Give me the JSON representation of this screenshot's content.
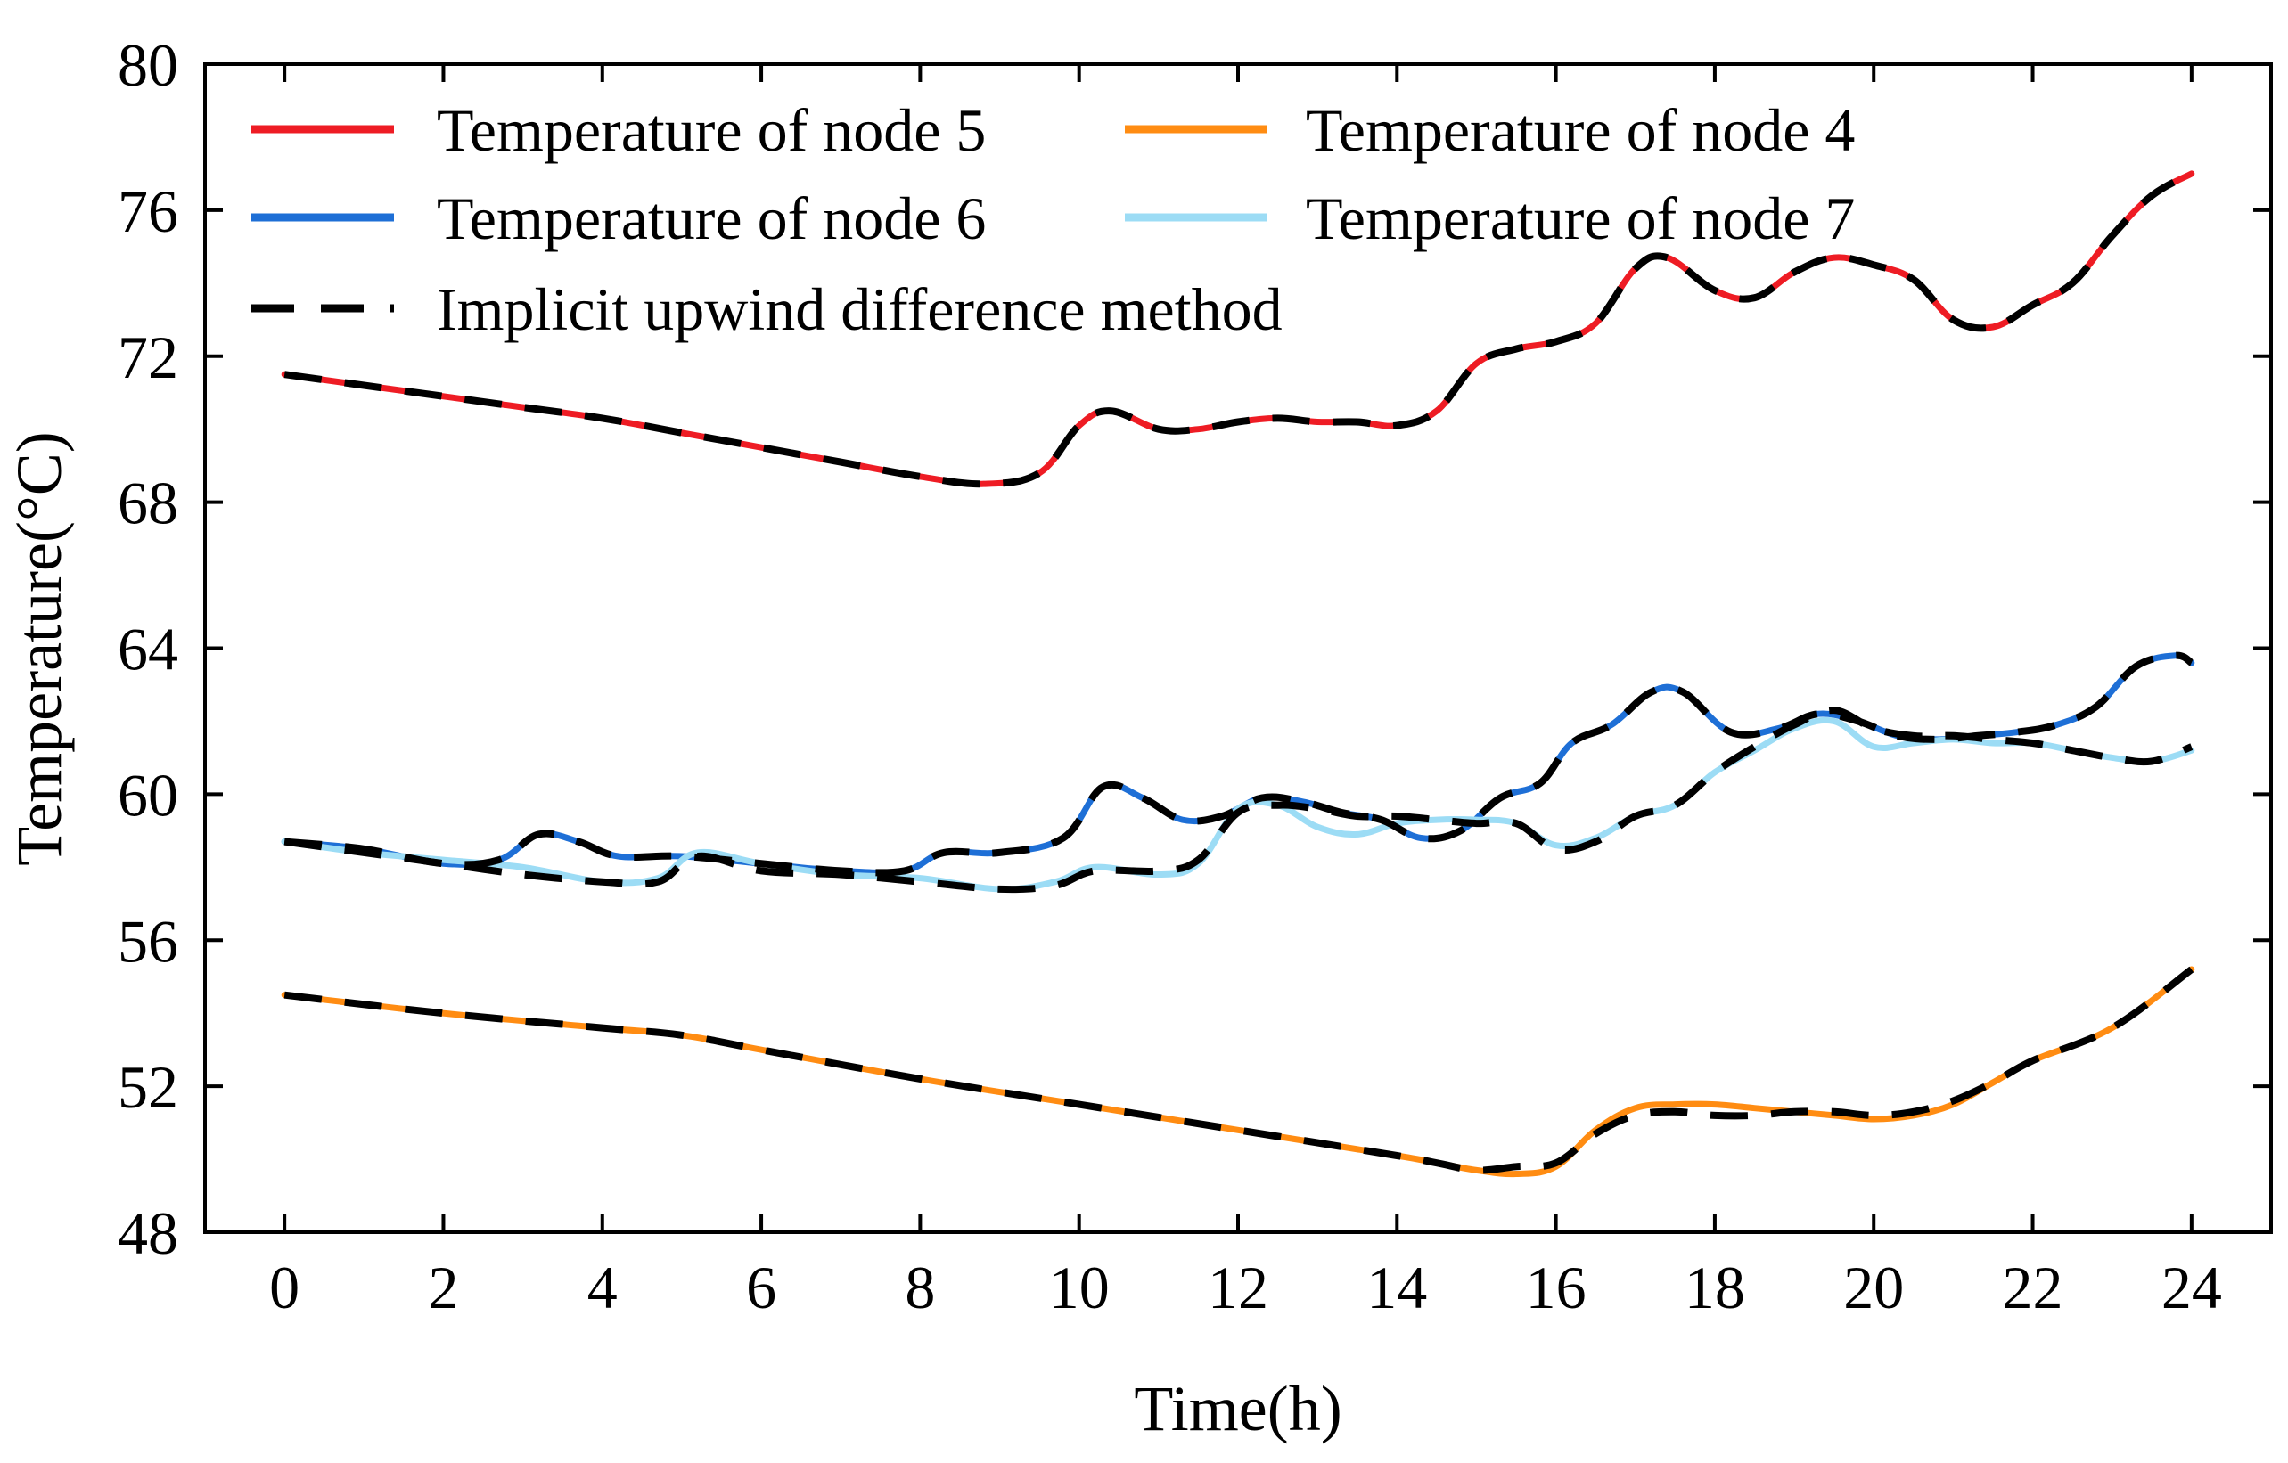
{
  "chart_data": {
    "type": "line",
    "title": "",
    "xlabel": "Time(h)",
    "ylabel": "Temperature(°C)",
    "xlim": [
      -1,
      25
    ],
    "ylim": [
      48,
      80
    ],
    "xticks": [
      0,
      2,
      4,
      6,
      8,
      10,
      12,
      14,
      16,
      18,
      20,
      22,
      24
    ],
    "yticks": [
      48,
      52,
      56,
      60,
      64,
      68,
      72,
      76,
      80
    ],
    "grid": false,
    "legend": "top-left",
    "series": [
      {
        "name": "Temperature of node 5",
        "color": "#ee1c24",
        "style": "solid",
        "x": [
          0,
          1,
          2,
          3,
          4,
          5,
          6,
          7,
          8,
          8.8,
          9.5,
          10,
          10.4,
          11,
          11.5,
          12,
          12.5,
          13,
          13.5,
          14,
          14.5,
          15,
          15.5,
          16,
          16.5,
          17,
          17.4,
          18,
          18.5,
          19,
          19.5,
          20,
          20.5,
          21,
          21.5,
          22,
          22.5,
          23,
          23.5,
          24
        ],
        "y": [
          71.5,
          71.2,
          70.9,
          70.6,
          70.3,
          69.9,
          69.5,
          69.1,
          68.7,
          68.5,
          68.8,
          70.1,
          70.5,
          70.0,
          70.0,
          70.2,
          70.3,
          70.2,
          70.2,
          70.1,
          70.5,
          71.8,
          72.2,
          72.4,
          72.9,
          74.4,
          74.7,
          73.8,
          73.6,
          74.3,
          74.7,
          74.5,
          74.1,
          73.0,
          72.8,
          73.4,
          74.0,
          75.3,
          76.4,
          77.0
        ]
      },
      {
        "name": "Temperature of node 4",
        "color": "#ff8c12",
        "style": "solid",
        "x": [
          0,
          2,
          4,
          5,
          6,
          8,
          10,
          12,
          14,
          14.5,
          15,
          15.5,
          16,
          16.5,
          17,
          17.5,
          18,
          18.5,
          19,
          19.5,
          20,
          20.5,
          21,
          21.5,
          22,
          23,
          24
        ],
        "y": [
          54.5,
          54.0,
          53.6,
          53.4,
          53.0,
          52.2,
          51.5,
          50.8,
          50.1,
          49.9,
          49.7,
          49.6,
          49.8,
          50.8,
          51.4,
          51.5,
          51.5,
          51.4,
          51.3,
          51.2,
          51.1,
          51.2,
          51.5,
          52.1,
          52.7,
          53.6,
          55.2
        ]
      },
      {
        "name": "Temperature of node 6",
        "color": "#1e6fd6",
        "style": "solid",
        "x": [
          0,
          1,
          2,
          2.7,
          3.2,
          3.7,
          4.2,
          5,
          6,
          7,
          7.8,
          8.3,
          9,
          9.8,
          10.3,
          10.8,
          11.3,
          11.8,
          12.3,
          12.8,
          13.3,
          13.8,
          14.3,
          14.8,
          15.3,
          15.8,
          16.2,
          16.7,
          17.2,
          17.6,
          18.2,
          18.8,
          19.3,
          19.8,
          20.3,
          20.8,
          21.3,
          21.8,
          22.3,
          22.8,
          23.3,
          23.8,
          24
        ],
        "y": [
          58.7,
          58.5,
          58.1,
          58.2,
          58.9,
          58.7,
          58.3,
          58.3,
          58.1,
          57.9,
          57.9,
          58.4,
          58.4,
          58.8,
          60.2,
          59.9,
          59.3,
          59.4,
          59.9,
          59.8,
          59.5,
          59.3,
          58.8,
          59.0,
          59.9,
          60.3,
          61.4,
          61.9,
          62.8,
          62.8,
          61.7,
          61.8,
          62.2,
          62.0,
          61.6,
          61.5,
          61.6,
          61.7,
          61.9,
          62.4,
          63.5,
          63.8,
          63.6
        ]
      },
      {
        "name": "Temperature of node 7",
        "color": "#9cdcf5",
        "style": "solid",
        "x": [
          0,
          1,
          2,
          3,
          4,
          4.7,
          5.2,
          6,
          7,
          8,
          9,
          9.7,
          10.2,
          11,
          11.5,
          12,
          12.5,
          13,
          13.5,
          14,
          14.5,
          15,
          15.5,
          16,
          16.5,
          17,
          17.5,
          18,
          18.5,
          19,
          19.5,
          20,
          20.5,
          21,
          21.5,
          22,
          22.5,
          23,
          23.5,
          24
        ],
        "y": [
          58.7,
          58.4,
          58.2,
          58.0,
          57.6,
          57.7,
          58.4,
          58.1,
          57.8,
          57.7,
          57.4,
          57.6,
          58.0,
          57.8,
          58.1,
          59.6,
          59.7,
          59.1,
          58.9,
          59.2,
          59.3,
          59.3,
          59.2,
          58.6,
          58.8,
          59.4,
          59.7,
          60.6,
          61.2,
          61.8,
          62.0,
          61.3,
          61.4,
          61.5,
          61.4,
          61.4,
          61.2,
          61.0,
          60.9,
          61.2
        ]
      },
      {
        "name": "Implicit upwind difference method",
        "color": "#000000",
        "style": "dashed",
        "segments": [
          {
            "x": [
              0,
              1,
              2,
              3,
              4,
              5,
              6,
              7,
              8,
              8.8,
              9.5,
              10,
              10.4,
              11,
              11.5,
              12,
              12.5,
              13,
              13.5,
              14,
              14.5,
              15,
              15.5,
              16,
              16.5,
              17,
              17.4,
              18,
              18.5,
              19,
              19.5,
              20,
              20.5,
              21,
              21.5,
              22,
              22.5,
              23,
              23.5,
              24
            ],
            "y": [
              71.5,
              71.2,
              70.9,
              70.6,
              70.3,
              69.9,
              69.5,
              69.1,
              68.7,
              68.5,
              68.8,
              70.1,
              70.5,
              70.0,
              70.0,
              70.2,
              70.3,
              70.2,
              70.2,
              70.1,
              70.5,
              71.8,
              72.2,
              72.4,
              72.9,
              74.4,
              74.7,
              73.8,
              73.6,
              74.3,
              74.7,
              74.5,
              74.1,
              73.0,
              72.8,
              73.4,
              74.0,
              75.3,
              76.4,
              77.0
            ]
          },
          {
            "x": [
              0,
              2,
              4,
              5,
              6,
              8,
              10,
              12,
              14,
              14.5,
              15,
              15.5,
              16,
              16.5,
              17,
              17.5,
              18,
              18.5,
              19,
              19.5,
              20,
              20.5,
              21,
              21.5,
              22,
              23,
              24
            ],
            "y": [
              54.5,
              54.0,
              53.6,
              53.4,
              53.0,
              52.2,
              51.5,
              50.8,
              50.1,
              49.9,
              49.7,
              49.8,
              49.9,
              50.7,
              51.2,
              51.3,
              51.2,
              51.2,
              51.3,
              51.3,
              51.2,
              51.3,
              51.6,
              52.1,
              52.7,
              53.6,
              55.2
            ]
          },
          {
            "x": [
              0,
              1,
              2,
              2.7,
              3.2,
              3.7,
              4.2,
              5,
              6,
              7,
              7.8,
              8.3,
              9,
              9.8,
              10.3,
              10.8,
              11.3,
              11.8,
              12.3,
              12.8,
              13.3,
              13.8,
              14.3,
              14.8,
              15.3,
              15.8,
              16.2,
              16.7,
              17.2,
              17.6,
              18.2,
              18.8,
              19.3,
              19.8,
              20.3,
              20.8,
              21.3,
              21.8,
              22.3,
              22.8,
              23.3,
              23.8,
              24
            ],
            "y": [
              58.7,
              58.5,
              58.1,
              58.2,
              58.9,
              58.7,
              58.3,
              58.3,
              58.1,
              57.9,
              57.9,
              58.4,
              58.4,
              58.8,
              60.2,
              59.9,
              59.3,
              59.4,
              59.9,
              59.8,
              59.5,
              59.3,
              58.8,
              59.0,
              59.9,
              60.3,
              61.4,
              61.9,
              62.8,
              62.8,
              61.7,
              61.8,
              62.2,
              62.0,
              61.6,
              61.5,
              61.6,
              61.7,
              61.9,
              62.4,
              63.5,
              63.8,
              63.6
            ]
          },
          {
            "x": [
              0,
              1,
              2,
              3,
              4,
              4.7,
              5.2,
              6,
              7,
              8,
              9,
              9.7,
              10.2,
              11,
              11.5,
              12,
              12.5,
              13,
              13.5,
              14,
              14.5,
              15,
              15.5,
              16,
              16.5,
              17,
              17.5,
              18,
              18.5,
              19,
              19.5,
              20,
              20.5,
              21,
              21.5,
              22,
              22.5,
              23,
              23.5,
              24
            ],
            "y": [
              58.7,
              58.4,
              58.1,
              57.8,
              57.6,
              57.6,
              58.3,
              57.9,
              57.8,
              57.6,
              57.4,
              57.5,
              57.9,
              57.9,
              58.2,
              59.5,
              59.7,
              59.6,
              59.4,
              59.4,
              59.3,
              59.2,
              59.2,
              58.5,
              58.7,
              59.4,
              59.7,
              60.6,
              61.3,
              61.9,
              62.3,
              61.8,
              61.6,
              61.6,
              61.5,
              61.4,
              61.2,
              61.0,
              60.9,
              61.3
            ]
          }
        ]
      }
    ]
  }
}
